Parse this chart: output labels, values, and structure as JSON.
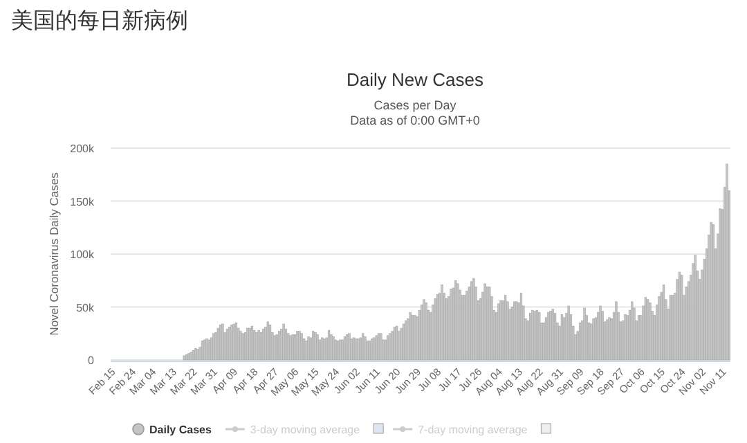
{
  "chart_data": {
    "type": "bar",
    "title": "Daily New Cases",
    "subtitle": "Cases per Day\nData as of 0:00 GMT+0",
    "annotations": [
      "美国的每日新病例"
    ],
    "ylabel": "Novel Coronavirus Daily Cases",
    "categories": [
      "Feb 15",
      null,
      null,
      null,
      null,
      null,
      null,
      null,
      null,
      "Feb 24",
      null,
      null,
      null,
      null,
      null,
      null,
      null,
      null,
      "Mar 04",
      null,
      null,
      null,
      null,
      null,
      null,
      null,
      null,
      "Mar 13",
      null,
      null,
      null,
      null,
      null,
      null,
      null,
      null,
      "Mar 22",
      null,
      null,
      null,
      null,
      null,
      null,
      null,
      null,
      "Mar 31",
      null,
      null,
      null,
      null,
      null,
      null,
      null,
      null,
      "Apr 09",
      null,
      null,
      null,
      null,
      null,
      null,
      null,
      null,
      "Apr 18",
      null,
      null,
      null,
      null,
      null,
      null,
      null,
      null,
      "Apr 27",
      null,
      null,
      null,
      null,
      null,
      null,
      null,
      null,
      "May 06",
      null,
      null,
      null,
      null,
      null,
      null,
      null,
      null,
      "May 15",
      null,
      null,
      null,
      null,
      null,
      null,
      null,
      null,
      "May 24",
      null,
      null,
      null,
      null,
      null,
      null,
      null,
      null,
      "Jun 02",
      null,
      null,
      null,
      null,
      null,
      null,
      null,
      null,
      "Jun 11",
      null,
      null,
      null,
      null,
      null,
      null,
      null,
      null,
      "Jun 20",
      null,
      null,
      null,
      null,
      null,
      null,
      null,
      null,
      "Jun 29",
      null,
      null,
      null,
      null,
      null,
      null,
      null,
      null,
      "Jul 08",
      null,
      null,
      null,
      null,
      null,
      null,
      null,
      null,
      "Jul 17",
      null,
      null,
      null,
      null,
      null,
      null,
      null,
      null,
      "Jul 26",
      null,
      null,
      null,
      null,
      null,
      null,
      null,
      null,
      "Aug 04",
      null,
      null,
      null,
      null,
      null,
      null,
      null,
      null,
      "Aug 13",
      null,
      null,
      null,
      null,
      null,
      null,
      null,
      null,
      "Aug 22",
      null,
      null,
      null,
      null,
      null,
      null,
      null,
      null,
      "Aug 31",
      null,
      null,
      null,
      null,
      null,
      null,
      null,
      null,
      "Sep 09",
      null,
      null,
      null,
      null,
      null,
      null,
      null,
      null,
      "Sep 18",
      null,
      null,
      null,
      null,
      null,
      null,
      null,
      null,
      "Sep 27",
      null,
      null,
      null,
      null,
      null,
      null,
      null,
      null,
      "Oct 06",
      null,
      null,
      null,
      null,
      null,
      null,
      null,
      null,
      "Oct 15",
      null,
      null,
      null,
      null,
      null,
      null,
      null,
      null,
      "Oct 24",
      null,
      null,
      null,
      null,
      null,
      null,
      null,
      null,
      "Nov 02",
      null,
      null,
      null,
      null,
      null,
      null,
      null,
      null,
      "Nov 11",
      null,
      null,
      null
    ],
    "series": [
      {
        "name": "Daily Cases",
        "color": "#c4c4c4",
        "values": [
          0,
          0,
          0,
          0,
          0,
          0,
          0,
          0,
          0,
          0,
          0,
          0,
          0,
          0,
          0,
          0,
          0,
          0,
          0,
          0,
          0,
          0,
          0,
          0,
          0,
          0,
          0,
          0,
          0,
          0,
          0,
          0,
          4000,
          5000,
          6000,
          7000,
          9000,
          11000,
          10000,
          12000,
          18000,
          19000,
          20000,
          19000,
          21000,
          25000,
          26000,
          30000,
          33000,
          34000,
          26000,
          29000,
          31000,
          33000,
          34000,
          35000,
          30000,
          27000,
          25000,
          26000,
          30000,
          30000,
          32000,
          28000,
          26000,
          28000,
          26000,
          29000,
          31000,
          36000,
          33000,
          26000,
          23000,
          24000,
          27000,
          29000,
          34000,
          29000,
          25000,
          23000,
          24000,
          24000,
          27000,
          27000,
          25000,
          20000,
          18000,
          22000,
          21000,
          27000,
          26000,
          24000,
          19000,
          21000,
          20000,
          21000,
          28000,
          24000,
          22000,
          19000,
          18000,
          19000,
          19000,
          22000,
          24000,
          25000,
          20000,
          21000,
          20000,
          20000,
          21000,
          25000,
          22000,
          18000,
          18000,
          20000,
          21000,
          23000,
          25000,
          25000,
          19000,
          19000,
          23000,
          25000,
          27000,
          31000,
          32000,
          27000,
          30000,
          34000,
          37000,
          39000,
          45000,
          42000,
          42000,
          41000,
          47000,
          52000,
          57000,
          54000,
          47000,
          45000,
          52000,
          58000,
          62000,
          63000,
          71000,
          63000,
          58000,
          60000,
          67000,
          68000,
          75000,
          72000,
          66000,
          61000,
          61000,
          65000,
          69000,
          74000,
          77000,
          69000,
          56000,
          58000,
          64000,
          72000,
          69000,
          69000,
          60000,
          47000,
          45000,
          53000,
          56000,
          56000,
          61000,
          55000,
          48000,
          50000,
          55000,
          55000,
          54000,
          63000,
          51000,
          39000,
          37000,
          44000,
          47000,
          46000,
          47000,
          45000,
          35000,
          35000,
          40000,
          45000,
          46000,
          48000,
          44000,
          35000,
          32000,
          43000,
          40000,
          44000,
          51000,
          43000,
          32000,
          24000,
          27000,
          35000,
          37000,
          49000,
          42000,
          35000,
          34000,
          39000,
          40000,
          45000,
          51000,
          46000,
          36000,
          38000,
          40000,
          39000,
          45000,
          55000,
          45000,
          36000,
          37000,
          43000,
          42000,
          47000,
          55000,
          49000,
          37000,
          42000,
          42000,
          51000,
          59000,
          57000,
          54000,
          46000,
          42000,
          52000,
          60000,
          64000,
          71000,
          57000,
          48000,
          61000,
          61000,
          63000,
          76000,
          83000,
          80000,
          61000,
          69000,
          74000,
          80000,
          91000,
          99000,
          84000,
          76000,
          85000,
          95000,
          105000,
          118000,
          130000,
          128000,
          105000,
          119000,
          143000,
          142000,
          163000,
          185000,
          160000
        ]
      },
      {
        "name": "3-day moving average",
        "type": "line",
        "marker": "circle",
        "color": "#cccccc",
        "values": [
          null,
          null,
          null,
          null,
          null,
          null,
          null,
          null,
          null,
          null,
          null,
          null,
          null,
          null,
          null,
          null,
          null,
          null,
          null,
          null,
          null,
          null,
          null,
          null,
          null,
          null,
          null,
          null,
          null,
          null,
          null,
          null,
          null,
          null,
          null,
          null,
          null,
          null,
          null,
          null,
          null,
          null,
          null,
          null,
          null,
          null,
          null,
          null,
          null,
          null,
          null,
          null,
          null,
          null,
          null,
          null,
          null,
          null,
          null,
          null,
          null,
          null,
          null,
          null,
          null,
          null,
          null,
          null,
          null,
          null,
          null,
          null,
          null,
          null,
          null,
          null,
          null,
          null,
          null,
          null,
          null,
          null,
          null,
          null,
          null,
          null,
          null,
          null,
          null,
          null,
          null,
          null,
          null,
          null,
          null,
          null,
          null,
          null,
          null,
          null,
          null,
          null,
          null,
          null,
          null,
          null,
          null,
          null,
          null,
          null,
          null,
          null,
          null,
          null,
          null,
          null,
          null,
          null,
          null,
          null,
          null,
          null,
          null,
          null,
          null,
          null,
          null,
          null,
          null,
          null,
          null,
          null,
          null,
          null,
          null,
          null,
          null,
          null,
          null,
          null,
          null,
          null,
          null,
          null,
          null,
          null,
          null,
          null,
          null,
          null,
          null,
          null,
          null,
          null,
          null,
          null,
          null,
          null,
          null,
          null,
          null,
          null,
          null,
          null,
          null,
          null,
          null,
          null,
          null,
          null,
          null,
          null,
          null,
          null,
          null,
          null,
          null,
          null,
          null,
          null,
          null,
          null,
          null,
          null,
          null,
          null,
          null,
          null,
          null,
          null,
          null,
          null,
          null,
          null,
          null,
          null,
          null,
          null,
          null,
          null,
          null,
          null,
          null,
          null,
          null,
          null,
          null,
          null,
          null,
          null,
          null,
          null,
          null,
          null,
          null,
          null,
          null,
          null,
          null,
          null,
          null,
          null,
          null,
          null,
          null,
          null,
          null,
          null,
          null,
          null,
          null,
          null,
          null,
          null,
          null,
          null,
          null,
          null,
          null,
          null,
          null,
          null,
          null,
          null,
          null,
          null,
          null,
          null,
          null,
          null,
          null,
          null,
          null,
          null,
          null,
          null,
          null,
          null,
          null,
          null,
          null,
          null,
          null,
          null,
          null,
          null,
          null,
          null,
          null,
          null,
          null,
          null,
          null,
          null
        ]
      },
      {
        "name": "7-day moving average",
        "type": "line",
        "marker": "circle",
        "color": "#cccccc",
        "values": [
          null,
          null,
          null,
          null,
          null,
          null,
          null,
          null,
          null,
          null,
          null,
          null,
          null,
          null,
          null,
          null,
          null,
          null,
          null,
          null,
          null,
          null,
          null,
          null,
          null,
          null,
          null,
          null,
          null,
          null,
          null,
          null,
          null,
          null,
          null,
          null,
          null,
          null,
          null,
          null,
          null,
          null,
          null,
          null,
          null,
          null,
          null,
          null,
          null,
          null,
          null,
          null,
          null,
          null,
          null,
          null,
          null,
          null,
          null,
          null,
          null,
          null,
          null,
          null,
          null,
          null,
          null,
          null,
          null,
          null,
          null,
          null,
          null,
          null,
          null,
          null,
          null,
          null,
          null,
          null,
          null,
          null,
          null,
          null,
          null,
          null,
          null,
          null,
          null,
          null,
          null,
          null,
          null,
          null,
          null,
          null,
          null,
          null,
          null,
          null,
          null,
          null,
          null,
          null,
          null,
          null,
          null,
          null,
          null,
          null,
          null,
          null,
          null,
          null,
          null,
          null,
          null,
          null,
          null,
          null,
          null,
          null,
          null,
          null,
          null,
          null,
          null,
          null,
          null,
          null,
          null,
          null,
          null,
          null,
          null,
          null,
          null,
          null,
          null,
          null,
          null,
          null,
          null,
          null,
          null,
          null,
          null,
          null,
          null,
          null,
          null,
          null,
          null,
          null,
          null,
          null,
          null,
          null,
          null,
          null,
          null,
          null,
          null,
          null,
          null,
          null,
          null,
          null,
          null,
          null,
          null,
          null,
          null,
          null,
          null,
          null,
          null,
          null,
          null,
          null,
          null,
          null,
          null,
          null,
          null,
          null,
          null,
          null,
          null,
          null,
          null,
          null,
          null,
          null,
          null,
          null,
          null,
          null,
          null,
          null,
          null,
          null,
          null,
          null,
          null,
          null,
          null,
          null,
          null,
          null,
          null,
          null,
          null,
          null,
          null,
          null,
          null,
          null,
          null,
          null,
          null,
          null,
          null,
          null,
          null,
          null,
          null,
          null,
          null,
          null,
          null,
          null,
          null,
          null,
          null,
          null,
          null,
          null,
          null,
          null,
          null,
          null,
          null,
          null,
          null,
          null,
          null,
          null,
          null,
          null,
          null,
          null,
          null,
          null,
          null,
          null,
          null,
          null,
          null,
          null,
          null,
          null,
          null,
          null,
          null,
          null,
          null,
          null,
          null,
          null,
          null,
          null,
          null,
          null
        ]
      }
    ],
    "ylim": [
      0,
      200000
    ],
    "yticks": [
      0,
      {
        "value": 50000,
        "label": "50k"
      },
      {
        "value": 100000,
        "label": "100k"
      },
      {
        "value": 150000,
        "label": "150k"
      },
      {
        "value": 200000,
        "label": "200k"
      }
    ],
    "grid": "y",
    "legend": "bottom"
  }
}
